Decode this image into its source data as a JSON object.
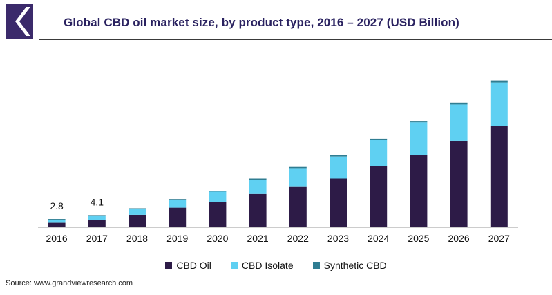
{
  "title": "Global CBD oil market size, by product type, 2016 – 2027 (USD Billion)",
  "source": "Source: www.grandviewresearch.com",
  "colors": {
    "cbd_oil": "#2d1b47",
    "cbd_isolate": "#5fd0f2",
    "synthetic_cbd": "#2f7d92",
    "logo": "#3b2a6b",
    "title": "#2a2260"
  },
  "chart_data": {
    "type": "bar",
    "stacked": true,
    "categories": [
      "2016",
      "2017",
      "2018",
      "2019",
      "2020",
      "2021",
      "2022",
      "2023",
      "2024",
      "2025",
      "2026",
      "2027"
    ],
    "series": [
      {
        "name": "CBD Oil",
        "values": [
          1.5,
          2.5,
          4.2,
          6.6,
          8.5,
          11.2,
          13.8,
          16.4,
          20.6,
          24.4,
          29.1,
          34.1
        ]
      },
      {
        "name": "CBD Isolate",
        "values": [
          1.1,
          1.4,
          2.0,
          2.6,
          3.5,
          4.8,
          6.1,
          7.4,
          8.7,
          10.9,
          12.2,
          14.6
        ]
      },
      {
        "name": "Synthetic CBD",
        "values": [
          0.2,
          0.2,
          0.2,
          0.3,
          0.3,
          0.4,
          0.4,
          0.5,
          0.5,
          0.5,
          0.6,
          0.7
        ]
      }
    ],
    "data_labels": {
      "2016": "2.8",
      "2017": "4.1"
    },
    "ylim": [
      0,
      50
    ],
    "legend_position": "bottom",
    "grid": false,
    "xlabel": "",
    "ylabel": ""
  }
}
